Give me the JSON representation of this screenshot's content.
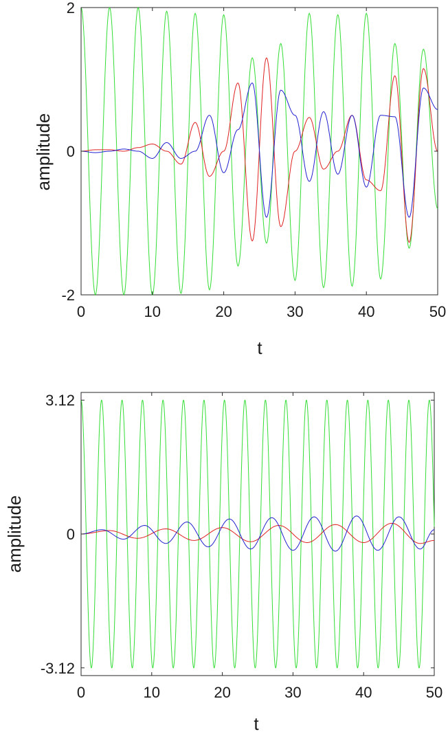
{
  "chart_data": [
    {
      "type": "line",
      "xlabel": "t",
      "ylabel": "amplitude",
      "xlim": [
        0,
        50
      ],
      "ylim": [
        -2,
        2
      ],
      "xticks": [
        0,
        10,
        20,
        30,
        40,
        50
      ],
      "xtick_labels": [
        "0",
        "10",
        "20",
        "30",
        "40",
        "50"
      ],
      "yticks": [
        -2,
        0,
        2
      ],
      "ytick_labels": [
        "-2",
        "0",
        "2"
      ],
      "grid": false,
      "box": true,
      "series": [
        {
          "color": "#33dd33",
          "x": [
            0,
            2,
            4,
            6,
            8,
            10,
            12,
            14,
            16,
            18,
            20,
            22,
            24,
            26,
            28,
            30,
            32,
            34,
            36,
            38,
            40,
            42,
            44,
            46,
            48,
            50
          ],
          "y": [
            2.0,
            -2.0,
            2.0,
            -2.0,
            2.0,
            -2.0,
            1.95,
            -1.98,
            1.92,
            -1.93,
            1.9,
            -1.6,
            1.3,
            -1.28,
            1.5,
            -1.8,
            1.92,
            -1.9,
            1.9,
            -1.88,
            1.92,
            -1.78,
            1.5,
            -1.35,
            1.42,
            -0.8
          ]
        },
        {
          "color": "#e02020",
          "x": [
            0,
            2,
            4,
            6,
            8,
            10,
            12,
            14,
            16,
            18,
            20,
            22,
            24,
            26,
            28,
            30,
            32,
            34,
            36,
            38,
            40,
            42,
            44,
            46,
            48,
            50
          ],
          "y": [
            0.0,
            0.02,
            0.02,
            0.0,
            0.05,
            0.1,
            0.0,
            -0.18,
            0.4,
            -0.35,
            0.0,
            0.95,
            -1.25,
            1.3,
            -1.05,
            0.0,
            0.47,
            -0.25,
            0.0,
            0.5,
            -0.4,
            -0.55,
            1.05,
            -1.27,
            1.15,
            0.0
          ]
        },
        {
          "color": "#2020d0",
          "x": [
            0,
            2,
            4,
            6,
            8,
            10,
            12,
            14,
            16,
            18,
            20,
            22,
            24,
            26,
            28,
            30,
            32,
            34,
            36,
            38,
            40,
            42,
            44,
            46,
            48,
            50
          ],
          "y": [
            0.0,
            -0.02,
            0.0,
            0.03,
            0.0,
            -0.1,
            0.12,
            -0.1,
            0.0,
            0.5,
            -0.3,
            0.3,
            0.95,
            -0.92,
            0.85,
            0.5,
            -0.42,
            0.55,
            -0.32,
            0.5,
            -0.5,
            0.5,
            0.48,
            -0.92,
            0.88,
            0.58
          ]
        }
      ]
    },
    {
      "type": "line",
      "xlabel": "t",
      "ylabel": "amplitude",
      "xlim": [
        0,
        50
      ],
      "ylim": [
        -3.3,
        3.3
      ],
      "xticks": [
        0,
        10,
        20,
        30,
        40,
        50
      ],
      "xtick_labels": [
        "0",
        "10",
        "20",
        "30",
        "40",
        "50"
      ],
      "yticks": [
        -3.12,
        0,
        3.12
      ],
      "ytick_labels": [
        "-3.12",
        "0",
        "3.12"
      ],
      "grid": false,
      "box": true,
      "series": [
        {
          "color": "#33dd33",
          "period": 2.9,
          "amplitude": 3.12,
          "phase_at_t0": "cos"
        },
        {
          "color": "#e02020",
          "x": [
            0,
            4,
            8,
            12,
            16,
            20,
            24,
            28,
            32,
            36,
            40,
            44,
            48,
            50
          ],
          "y": [
            0.0,
            0.08,
            -0.1,
            0.12,
            -0.15,
            0.15,
            -0.18,
            0.2,
            -0.2,
            0.22,
            -0.2,
            0.25,
            -0.22,
            -0.15
          ]
        },
        {
          "color": "#2020d0",
          "x": [
            0,
            3,
            6,
            9,
            12,
            15,
            18,
            21,
            24,
            27,
            30,
            33,
            36,
            39,
            42,
            45,
            48,
            50
          ],
          "y": [
            0.0,
            0.1,
            -0.12,
            0.2,
            -0.22,
            0.28,
            -0.3,
            0.35,
            -0.35,
            0.38,
            -0.38,
            0.4,
            -0.4,
            0.42,
            -0.38,
            0.4,
            -0.35,
            0.1
          ]
        }
      ]
    }
  ]
}
